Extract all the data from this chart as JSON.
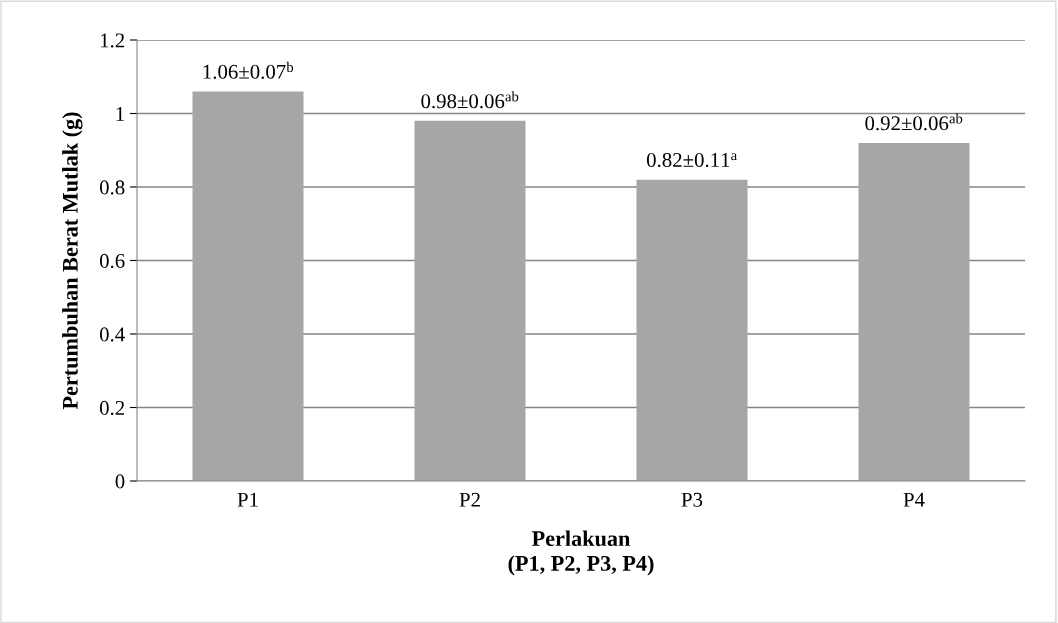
{
  "chart_data": {
    "type": "bar",
    "categories": [
      "P1",
      "P2",
      "P3",
      "P4"
    ],
    "values": [
      1.06,
      0.98,
      0.82,
      0.92
    ],
    "color": "#a6a6a6",
    "value_labels": [
      "1.06±0.07$^{b}$",
      "0.98±0.06$^{ab}$",
      "0.82±0.11$^{a}$",
      "0.92±0.06$^{ab}$"
    ],
    "xlabel": "Perlakuan\n(P1, P2, P3, P4)",
    "ylabel": "Pertumbuhan Berat Mutlak (g)",
    "ylim": [
      0,
      1.2
    ],
    "yticks": [
      0,
      0.2,
      0.4,
      0.6,
      0.8,
      1,
      1.2
    ],
    "grid": "y",
    "legend": false
  }
}
